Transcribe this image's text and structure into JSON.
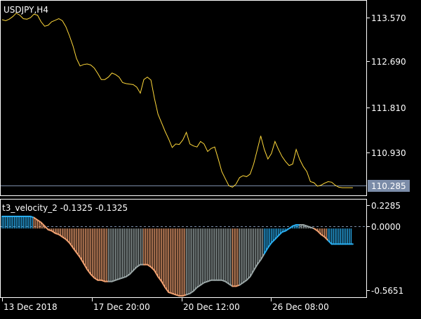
{
  "main": {
    "symbol_label": "USDJPY,H4",
    "price_ticks": [
      "113.570",
      "112.690",
      "111.810",
      "110.930"
    ],
    "current_price": "110.285"
  },
  "indicator": {
    "label": "t3_velocity_2 -0.1325 -0.1325",
    "ticks": [
      "0.2285",
      "0.0000",
      "-0.5651"
    ]
  },
  "time_axis": {
    "labels": [
      "13 Dec 2018",
      "17 Dec 20:00",
      "20 Dec 12:00",
      "26 Dec 08:00"
    ]
  },
  "colors": {
    "background": "#000000",
    "price_line": "#ffd83a",
    "bid_line": "#7b8ca8",
    "price_box": "#7b8ca8",
    "up": "#29aef0",
    "down": "#f0a070",
    "neutral": "#9aa6a6"
  },
  "chart_data": [
    {
      "type": "line",
      "title": "USDJPY,H4",
      "ylim": [
        110.24,
        113.9
      ],
      "x_range": [
        0,
        100
      ],
      "x_tick_labels": [
        "13 Dec 2018",
        "17 Dec 20:00",
        "20 Dec 12:00",
        "26 Dec 08:00"
      ],
      "x_tick_positions": [
        0,
        25,
        50,
        75
      ],
      "series": [
        {
          "name": "",
          "x": [
            0,
            1,
            2,
            3,
            4,
            5,
            6,
            7,
            8,
            9,
            10,
            11,
            12,
            13,
            14,
            15,
            16,
            17,
            18,
            19,
            20,
            21,
            22,
            23,
            24,
            25,
            26,
            27,
            28,
            29,
            30,
            31,
            32,
            33,
            34,
            35,
            36,
            37,
            38,
            39,
            40,
            41,
            42,
            43,
            44,
            45,
            46,
            47,
            48,
            49,
            50,
            51,
            52,
            53,
            54,
            55,
            56,
            57,
            58,
            59,
            60,
            61,
            62,
            63,
            64,
            65,
            66,
            67,
            68,
            69,
            70,
            71,
            72,
            73,
            74,
            75,
            76,
            77,
            78,
            79,
            80,
            81,
            82,
            83,
            84,
            85,
            86,
            87,
            88,
            89,
            90,
            91,
            92,
            93,
            94,
            95,
            96,
            97,
            98,
            99
          ],
          "values": [
            113.62,
            113.6,
            113.63,
            113.68,
            113.75,
            113.71,
            113.64,
            113.63,
            113.66,
            113.73,
            113.71,
            113.58,
            113.49,
            113.51,
            113.58,
            113.61,
            113.64,
            113.6,
            113.48,
            113.3,
            113.1,
            112.85,
            112.7,
            112.73,
            112.74,
            112.72,
            112.66,
            112.55,
            112.43,
            112.43,
            112.48,
            112.56,
            112.53,
            112.48,
            112.37,
            112.35,
            112.34,
            112.33,
            112.28,
            112.16,
            112.43,
            112.48,
            112.42,
            112.05,
            111.74,
            111.57,
            111.4,
            111.25,
            111.08,
            111.15,
            111.14,
            111.23,
            111.38,
            111.15,
            111.11,
            111.09,
            111.2,
            111.15,
            111.0,
            111.06,
            111.09,
            110.85,
            110.6,
            110.46,
            110.32,
            110.29,
            110.35,
            110.48,
            110.52,
            110.5,
            110.55,
            110.75,
            111.03,
            111.31,
            111.04,
            110.85,
            110.96,
            111.2,
            111.04,
            110.9,
            110.8,
            110.72,
            110.75,
            111.04,
            110.84,
            110.7,
            110.6,
            110.4,
            110.38,
            110.31,
            110.33,
            110.37,
            110.4,
            110.39,
            110.33,
            110.29,
            110.28,
            110.28,
            110.28,
            110.28
          ]
        }
      ],
      "current_value": 110.285
    },
    {
      "type": "bar",
      "title": "t3_velocity_2",
      "ylim": [
        -0.5651,
        0.2285
      ],
      "x_range": [
        0,
        100
      ],
      "x": [
        0,
        1,
        2,
        3,
        4,
        5,
        6,
        7,
        8,
        9,
        10,
        11,
        12,
        13,
        14,
        15,
        16,
        17,
        18,
        19,
        20,
        21,
        22,
        23,
        24,
        25,
        26,
        27,
        28,
        29,
        30,
        31,
        32,
        33,
        34,
        35,
        36,
        37,
        38,
        39,
        40,
        41,
        42,
        43,
        44,
        45,
        46,
        47,
        48,
        49,
        50,
        51,
        52,
        53,
        54,
        55,
        56,
        57,
        58,
        59,
        60,
        61,
        62,
        63,
        64,
        65,
        66,
        67,
        68,
        69,
        70,
        71,
        72,
        73,
        74,
        75,
        76,
        77,
        78,
        79,
        80,
        81,
        82,
        83,
        84,
        85,
        86,
        87,
        88,
        89,
        90,
        91,
        92,
        93,
        94,
        95,
        96,
        97,
        98,
        99
      ],
      "values": [
        0.1,
        0.1,
        0.1,
        0.1,
        0.1,
        0.1,
        0.1,
        0.1,
        0.1,
        0.09,
        0.07,
        0.05,
        0.02,
        -0.01,
        -0.02,
        -0.04,
        -0.05,
        -0.07,
        -0.09,
        -0.12,
        -0.16,
        -0.2,
        -0.24,
        -0.29,
        -0.34,
        -0.38,
        -0.41,
        -0.43,
        -0.43,
        -0.44,
        -0.44,
        -0.44,
        -0.43,
        -0.42,
        -0.41,
        -0.4,
        -0.38,
        -0.35,
        -0.32,
        -0.3,
        -0.3,
        -0.3,
        -0.32,
        -0.35,
        -0.4,
        -0.44,
        -0.49,
        -0.53,
        -0.54,
        -0.55,
        -0.56,
        -0.56,
        -0.55,
        -0.54,
        -0.52,
        -0.49,
        -0.47,
        -0.45,
        -0.44,
        -0.43,
        -0.43,
        -0.43,
        -0.43,
        -0.44,
        -0.46,
        -0.48,
        -0.48,
        -0.47,
        -0.45,
        -0.43,
        -0.4,
        -0.35,
        -0.3,
        -0.26,
        -0.21,
        -0.16,
        -0.12,
        -0.09,
        -0.06,
        -0.03,
        -0.02,
        0.0,
        0.02,
        0.03,
        0.03,
        0.03,
        0.02,
        0.01,
        0.0,
        -0.02,
        -0.05,
        -0.07,
        -0.1,
        -0.13,
        -0.13,
        -0.13,
        -0.13,
        -0.13,
        -0.13,
        -0.13
      ],
      "color_states": [
        "up",
        "up",
        "up",
        "up",
        "up",
        "up",
        "up",
        "up",
        "up",
        "down",
        "down",
        "down",
        "down",
        "down",
        "down",
        "down",
        "down",
        "down",
        "down",
        "down",
        "down",
        "down",
        "down",
        "down",
        "down",
        "down",
        "down",
        "down",
        "down",
        "down",
        "neutral",
        "neutral",
        "neutral",
        "neutral",
        "neutral",
        "neutral",
        "neutral",
        "neutral",
        "neutral",
        "neutral",
        "down",
        "down",
        "down",
        "down",
        "down",
        "down",
        "down",
        "down",
        "down",
        "down",
        "down",
        "down",
        "neutral",
        "neutral",
        "neutral",
        "neutral",
        "neutral",
        "neutral",
        "neutral",
        "neutral",
        "neutral",
        "neutral",
        "neutral",
        "neutral",
        "neutral",
        "down",
        "down",
        "neutral",
        "neutral",
        "neutral",
        "neutral",
        "neutral",
        "neutral",
        "neutral",
        "up",
        "up",
        "up",
        "up",
        "up",
        "up",
        "up",
        "up",
        "up",
        "up",
        "neutral",
        "neutral",
        "neutral",
        "neutral",
        "down",
        "down",
        "down",
        "down",
        "up",
        "up",
        "up",
        "up",
        "up",
        "up",
        "up",
        "up"
      ]
    }
  ]
}
